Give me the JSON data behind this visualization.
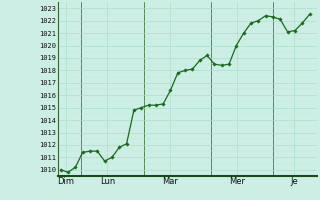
{
  "background_color": "#cceee4",
  "grid_major_color": "#aaddcc",
  "grid_minor_color": "#bbeedc",
  "line_color": "#1a6b1a",
  "marker_color": "#1a6b1a",
  "ylim": [
    1009.5,
    1023.5
  ],
  "yticks": [
    1010,
    1011,
    1012,
    1013,
    1014,
    1015,
    1016,
    1017,
    1018,
    1019,
    1020,
    1021,
    1022,
    1023
  ],
  "x_day_labels": [
    "Dim",
    "Lun",
    "Mar",
    "Mer",
    "Je"
  ],
  "x_day_positions": [
    0.5,
    4.5,
    10.5,
    17.0,
    22.5
  ],
  "x_vlines": [
    2.0,
    8.0,
    14.5,
    20.5
  ],
  "xlim": [
    -0.3,
    24.7
  ],
  "data_y": [
    1010.0,
    1009.8,
    1010.2,
    1011.4,
    1011.5,
    1011.5,
    1010.7,
    1011.0,
    1011.8,
    1012.1,
    1014.8,
    1015.0,
    1015.2,
    1015.2,
    1015.3,
    1016.4,
    1017.8,
    1018.0,
    1018.1,
    1018.8,
    1019.2,
    1018.5,
    1018.4,
    1018.5,
    1020.0,
    1021.0,
    1021.8,
    1022.0,
    1022.4,
    1022.3,
    1022.1,
    1021.1,
    1021.2,
    1021.8,
    1022.5
  ]
}
